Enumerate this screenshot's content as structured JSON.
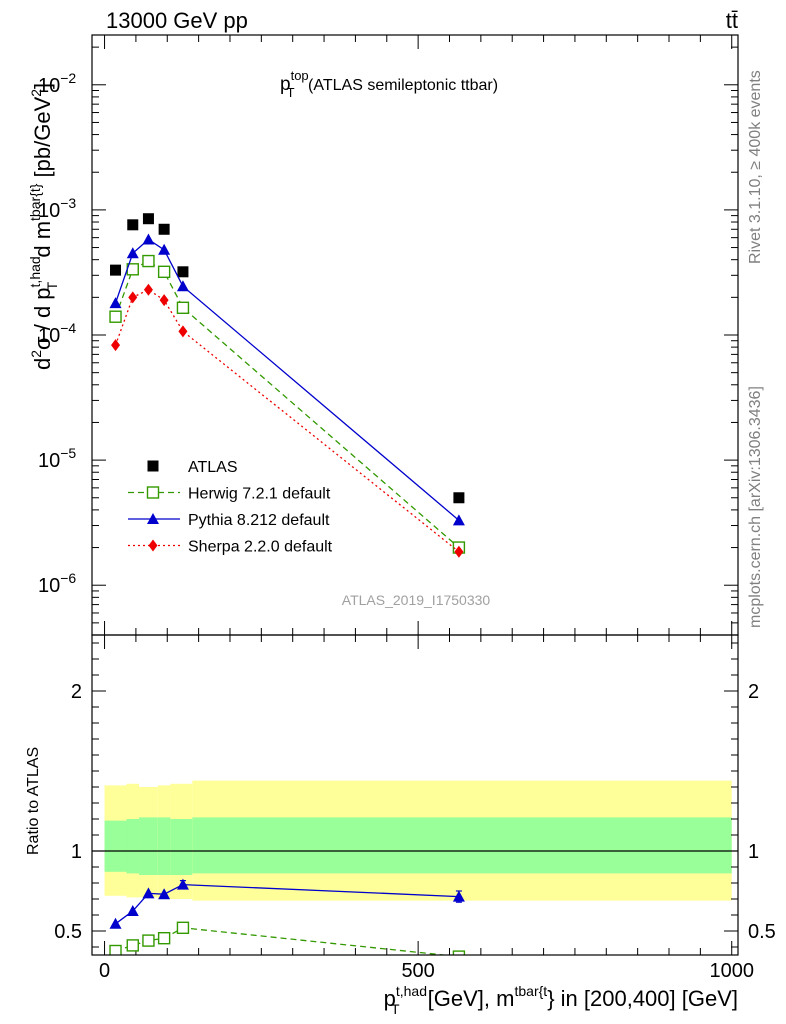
{
  "header": {
    "left": "13000 GeV pp",
    "right": "tt̄"
  },
  "side_labels": {
    "rivet": "Rivet 3.1.10, ≥ 400k events",
    "mcplots": "mcplots.cern.ch [arXiv:1306.3436]"
  },
  "watermark": "ATLAS_2019_I1750330",
  "chart_data": [
    {
      "type": "line",
      "title": {
        "main": "p",
        "sup": "top",
        "sub": "T",
        "rest": " (ATLAS semileptonic ttbar)"
      },
      "ylabel": {
        "a": "d",
        "a_sup": "2",
        "b": "σ / d p",
        "b_sup": "t,had",
        "b_sub": "T",
        "c": " d m",
        "c_sup": "tbar{t}",
        "d": " [pb/GeV",
        "d_sup": "2",
        "e": "]"
      },
      "yscale": "log",
      "ylim": [
        4e-07,
        0.025
      ],
      "xlim": [
        -20,
        1010
      ],
      "ytick_labels": [
        {
          "value": 1e-06,
          "base": "10",
          "exp": "−6"
        },
        {
          "value": 1e-05,
          "base": "10",
          "exp": "−5"
        },
        {
          "value": 0.0001,
          "base": "10",
          "exp": "−4"
        },
        {
          "value": 0.001,
          "base": "10",
          "exp": "−3"
        },
        {
          "value": 0.01,
          "base": "10",
          "exp": "−2"
        }
      ],
      "legend_position": "bottom-left",
      "series": [
        {
          "name": "ATLAS",
          "style": "data",
          "marker": "square",
          "color": "#000000",
          "x": [
            17.5,
            45,
            70,
            95,
            125,
            565
          ],
          "values": [
            0.00033,
            0.00076,
            0.00085,
            0.0007,
            0.00032,
            5e-06
          ]
        },
        {
          "name": "Herwig 7.2.1 default",
          "style": "dashed",
          "marker": "open-square",
          "color": "#339900",
          "x": [
            17.5,
            45,
            70,
            95,
            125,
            565
          ],
          "values": [
            0.00014,
            0.000335,
            0.00039,
            0.00032,
            0.000165,
            2e-06
          ]
        },
        {
          "name": "Pythia 8.212 default",
          "style": "solid",
          "marker": "triangle",
          "color": "#0000cc",
          "x": [
            17.5,
            45,
            70,
            95,
            125,
            565
          ],
          "values": [
            0.00018,
            0.00045,
            0.00058,
            0.00048,
            0.000245,
            3.3e-06
          ]
        },
        {
          "name": "Sherpa 2.2.0 default",
          "style": "dotted",
          "marker": "diamond",
          "color": "#ee0000",
          "x": [
            17.5,
            45,
            70,
            95,
            125,
            565
          ],
          "values": [
            8.3e-05,
            0.0002,
            0.00023,
            0.00019,
            0.000107,
            1.85e-06
          ]
        }
      ]
    },
    {
      "type": "line",
      "title": "",
      "ylabel": "Ratio to ATLAS",
      "xlabel": {
        "a": "p",
        "a_sup": "t,had",
        "a_sub": "T",
        "b": " [GeV], m",
        "b_sup": "tbar{t",
        "c": "} in [200,400] [GeV]"
      },
      "ylim": [
        0.35,
        2.35
      ],
      "xlim": [
        -20,
        1010
      ],
      "xtick_labels": [
        {
          "value": 0,
          "label": "0"
        },
        {
          "value": 500,
          "label": "500"
        },
        {
          "value": 1000,
          "label": "1000"
        }
      ],
      "ytick_labels": [
        {
          "value": 0.5,
          "label": "0.5"
        },
        {
          "value": 1,
          "label": "1"
        },
        {
          "value": 2,
          "label": "2"
        }
      ],
      "bins": [
        0,
        35,
        55,
        85,
        105,
        140,
        1000
      ],
      "band_outer": {
        "color": "#ffff99",
        "lo": [
          0.72,
          0.71,
          0.71,
          0.7,
          0.7,
          0.69
        ],
        "hi": [
          1.41,
          1.42,
          1.4,
          1.41,
          1.42,
          1.44
        ]
      },
      "band_inner": {
        "color": "#99ff99",
        "lo": [
          0.87,
          0.86,
          0.85,
          0.85,
          0.85,
          0.86
        ],
        "hi": [
          1.19,
          1.2,
          1.21,
          1.21,
          1.2,
          1.21
        ]
      },
      "reference": 1,
      "series": [
        {
          "name": "Herwig 7.2.1 default",
          "style": "dashed",
          "marker": "open-square",
          "color": "#339900",
          "x": [
            17.5,
            45,
            70,
            95,
            125,
            565
          ],
          "values": [
            0.375,
            0.41,
            0.44,
            0.455,
            0.52,
            0.34
          ]
        },
        {
          "name": "Pythia 8.212 default",
          "style": "solid",
          "marker": "triangle",
          "color": "#0000cc",
          "x": [
            17.5,
            45,
            70,
            95,
            125,
            565
          ],
          "values": [
            0.545,
            0.625,
            0.735,
            0.73,
            0.79,
            0.715
          ],
          "err": [
            0,
            0,
            0,
            0,
            0.025,
            0.035
          ]
        }
      ]
    }
  ]
}
